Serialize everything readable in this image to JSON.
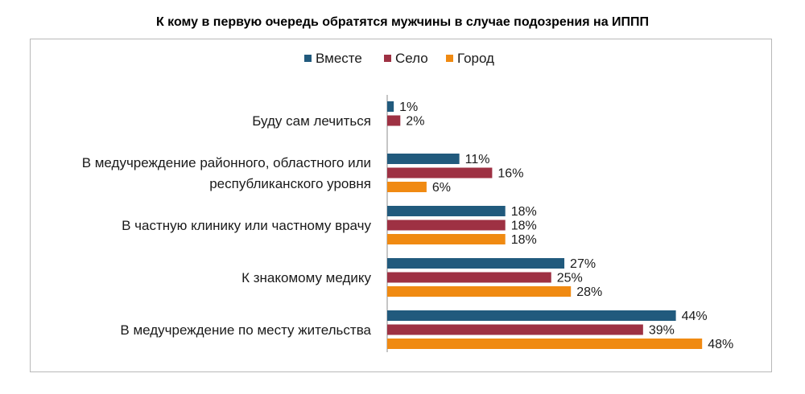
{
  "chart_data": {
    "type": "bar",
    "orientation": "horizontal",
    "title": "К кому в первую очередь  обратятся мужчины в случае подозрения на ИППП",
    "categories": [
      [
        "Буду сам лечиться"
      ],
      [
        "В медучреждение районного, областного или",
        "республиканского уровня"
      ],
      [
        "В частную клинику или частному врачу"
      ],
      [
        "К знакомому медику"
      ],
      [
        "В медучреждение по месту жительства"
      ]
    ],
    "series": [
      {
        "name": "Вместе",
        "color": "#215a7d",
        "values": [
          1,
          11,
          18,
          27,
          44
        ],
        "labels": [
          "1%",
          "11%",
          "18%",
          "27%",
          "44%"
        ]
      },
      {
        "name": "Село",
        "color": "#9e3143",
        "values": [
          2,
          16,
          18,
          25,
          39
        ],
        "labels": [
          "2%",
          "16%",
          "18%",
          "25%",
          "39%"
        ]
      },
      {
        "name": "Город",
        "color": "#f08a12",
        "values": [
          null,
          6,
          18,
          28,
          48
        ],
        "labels": [
          null,
          "6%",
          "18%",
          "28%",
          "48%"
        ]
      }
    ],
    "legend_position": "top",
    "grid": false,
    "xlim": [
      0,
      50
    ]
  }
}
